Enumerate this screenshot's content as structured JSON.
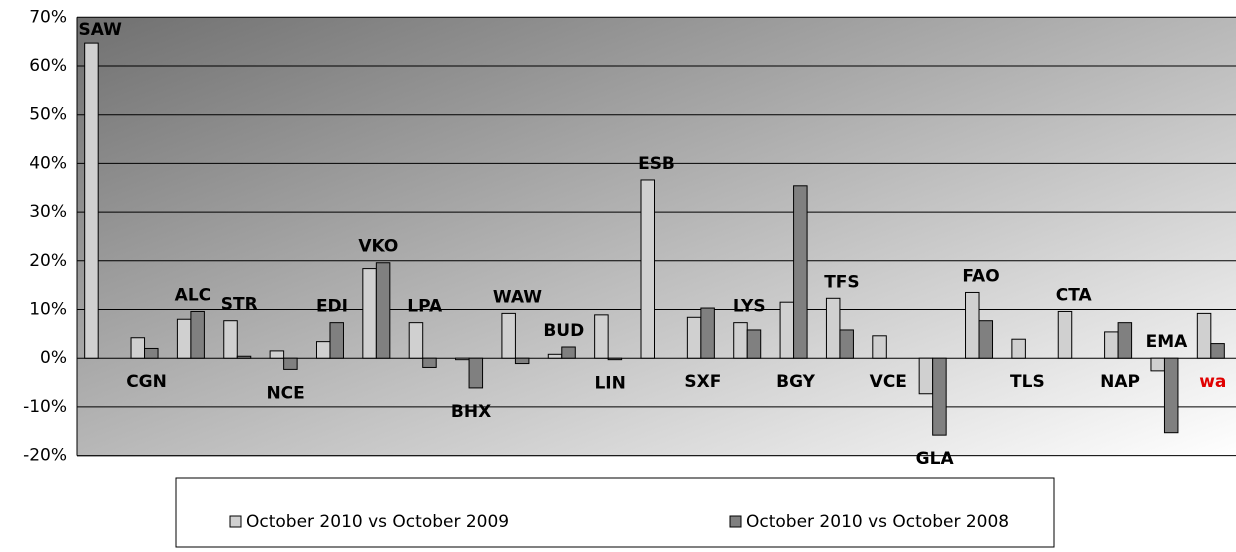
{
  "chart_data": {
    "type": "bar",
    "categories": [
      "SAW",
      "CGN",
      "ALC",
      "STR",
      "NCE",
      "EDI",
      "VKO",
      "LPA",
      "BHX",
      "WAW",
      "BUD",
      "LIN",
      "ESB",
      "SXF",
      "LYS",
      "BGY",
      "TFS",
      "VCE",
      "GLA",
      "FAO",
      "TLS",
      "CTA",
      "NAP",
      "EMA",
      "wa"
    ],
    "category_label_colors": [
      "#000",
      "#000",
      "#000",
      "#000",
      "#000",
      "#000",
      "#000",
      "#000",
      "#000",
      "#000",
      "#000",
      "#000",
      "#000",
      "#000",
      "#000",
      "#000",
      "#000",
      "#000",
      "#000",
      "#000",
      "#000",
      "#000",
      "#000",
      "#000",
      "#e00000"
    ],
    "series": [
      {
        "name": "October 2010 vs October 2009",
        "color": "#d0d0d0",
        "values": [
          64.7,
          4.2,
          8.0,
          7.7,
          1.5,
          3.4,
          18.4,
          7.3,
          -0.3,
          9.2,
          0.8,
          8.9,
          36.6,
          8.4,
          7.3,
          11.5,
          12.3,
          4.6,
          -7.3,
          13.5,
          3.9,
          9.6,
          5.4,
          -2.6,
          9.2
        ]
      },
      {
        "name": "October 2010 vs October 2008",
        "color": "#808080",
        "values": [
          null,
          2.0,
          9.6,
          0.4,
          -2.3,
          7.3,
          19.6,
          -1.9,
          -6.1,
          -1.1,
          2.3,
          -0.3,
          null,
          10.3,
          5.8,
          35.4,
          5.8,
          null,
          -15.8,
          7.7,
          null,
          null,
          7.3,
          -15.3,
          3.0
        ]
      }
    ],
    "ylim": [
      -20,
      70
    ],
    "yticks": [
      {
        "value": -20,
        "label": "-20%"
      },
      {
        "value": -10,
        "label": "-10%"
      },
      {
        "value": 0,
        "label": "0%"
      },
      {
        "value": 10,
        "label": "10%"
      },
      {
        "value": 20,
        "label": "20%"
      },
      {
        "value": 30,
        "label": "30%"
      },
      {
        "value": 40,
        "label": "40%"
      },
      {
        "value": 50,
        "label": "50%"
      },
      {
        "value": 60,
        "label": "60%"
      },
      {
        "value": 70,
        "label": "70%"
      }
    ],
    "grid": true
  }
}
